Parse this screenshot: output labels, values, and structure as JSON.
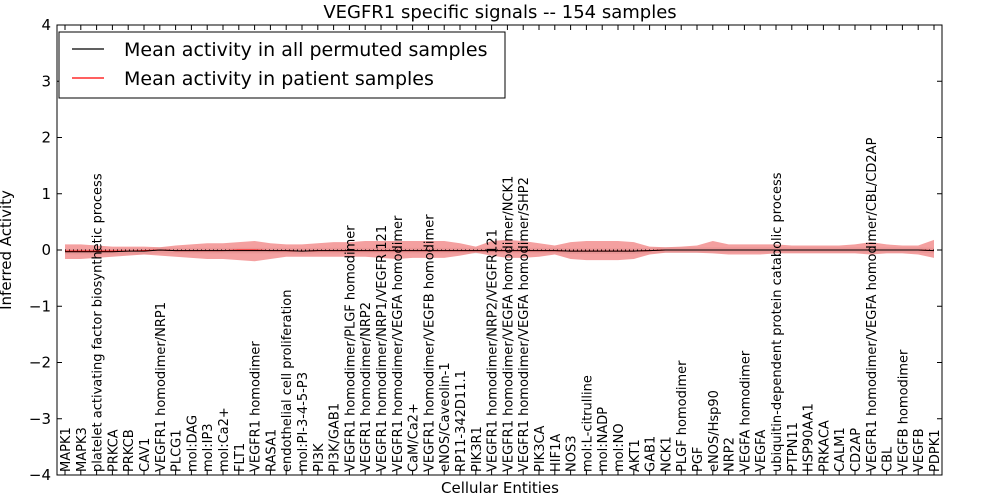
{
  "chart_data": {
    "type": "line",
    "title": "VEGFR1 specific signals -- 154 samples",
    "xlabel": "Cellular Entities",
    "ylabel": "Inferred Activity",
    "ylim": [
      -4,
      4
    ],
    "yticks": [
      "4",
      "3",
      "2",
      "1",
      "0",
      "−1",
      "−2",
      "−3",
      "−4"
    ],
    "grid": false,
    "legend_position": "top-left",
    "categories": [
      "MAPK1",
      "MAPK3",
      "platelet activating factor biosynthetic process",
      "PRKCA",
      "PRKCB",
      "CAV1",
      "VEGFR1 homodimer/NRP1",
      "PLCG1",
      "mol:DAG",
      "mol:IP3",
      "mol:Ca2+",
      "FLT1",
      "VEGFR1 homodimer",
      "RASA1",
      "endothelial cell proliferation",
      "mol:PI-3-4-5-P3",
      "PI3K",
      "PI3K/GAB1",
      "VEGFR1 homodimer/PLGF homodimer",
      "VEGFR1 homodimer/NRP2",
      "VEGFR1 homodimer/NRP1/VEGFR 121",
      "VEGFR1 homodimer/VEGFA homodimer",
      "CaM/Ca2+",
      "VEGFR1 homodimer/VEGFB homodimer",
      "eNOS/Caveolin-1",
      "RP11-342D11.1",
      "PIK3R1",
      "VEGFR1 homodimer/NRP2/VEGFR121",
      "VEGFR1 homodimer/VEGFA homodimer/NCK1",
      "VEGFR1 homodimer/VEGFA homodimer/SHP2",
      "PIK3CA",
      "HIF1A",
      "NOS3",
      "mol:L-citrulline",
      "mol:NADP",
      "mol:NO",
      "AKT1",
      "GAB1",
      "NCK1",
      "PLGF homodimer",
      "PGF",
      "eNOS/Hsp90",
      "NRP2",
      "VEGFA homodimer",
      "VEGFA",
      "ubiquitin-dependent protein catabolic process",
      "PTPN11",
      "HSP90AA1",
      "PRKACA",
      "CALM1",
      "CD2AP",
      "VEGFR1 homodimer/VEGFA homodimer/CBL/CD2AP",
      "CBL",
      "VEGFB homodimer",
      "VEGFB",
      "PDPK1"
    ],
    "series": [
      {
        "name": "Mean activity in all permuted samples",
        "color": "#000000",
        "values": [
          -0.03,
          -0.03,
          -0.03,
          -0.03,
          -0.02,
          -0.02,
          0.0,
          -0.01,
          -0.01,
          -0.01,
          -0.01,
          -0.01,
          -0.01,
          -0.01,
          -0.01,
          -0.02,
          -0.01,
          -0.01,
          -0.01,
          -0.01,
          -0.01,
          -0.01,
          -0.01,
          -0.01,
          -0.01,
          -0.01,
          -0.01,
          -0.01,
          -0.01,
          -0.01,
          -0.01,
          -0.01,
          -0.02,
          -0.02,
          -0.02,
          -0.02,
          -0.02,
          -0.01,
          0.0,
          0.0,
          0.0,
          0.0,
          0.0,
          0.0,
          0.0,
          0.0,
          0.0,
          0.0,
          0.0,
          0.0,
          0.0,
          0.0,
          0.0,
          0.0,
          0.0,
          -0.01
        ],
        "lower": [
          -0.08,
          -0.08,
          -0.08,
          -0.08,
          -0.08,
          -0.08,
          -0.06,
          -0.06,
          -0.06,
          -0.06,
          -0.06,
          -0.06,
          -0.06,
          -0.06,
          -0.06,
          -0.07,
          -0.06,
          -0.06,
          -0.06,
          -0.06,
          -0.06,
          -0.06,
          -0.06,
          -0.06,
          -0.06,
          -0.06,
          -0.06,
          -0.06,
          -0.06,
          -0.06,
          -0.06,
          -0.06,
          -0.07,
          -0.07,
          -0.07,
          -0.07,
          -0.07,
          -0.06,
          -0.05,
          -0.05,
          -0.05,
          -0.05,
          -0.05,
          -0.05,
          -0.05,
          -0.05,
          -0.05,
          -0.05,
          -0.05,
          -0.05,
          -0.05,
          -0.05,
          -0.05,
          -0.05,
          -0.05,
          -0.06
        ],
        "upper": [
          0.02,
          0.02,
          0.02,
          0.02,
          0.03,
          0.03,
          0.05,
          0.04,
          0.04,
          0.04,
          0.04,
          0.04,
          0.04,
          0.04,
          0.04,
          0.03,
          0.04,
          0.04,
          0.04,
          0.04,
          0.04,
          0.04,
          0.04,
          0.04,
          0.04,
          0.04,
          0.04,
          0.04,
          0.04,
          0.04,
          0.04,
          0.04,
          0.03,
          0.03,
          0.03,
          0.03,
          0.03,
          0.04,
          0.05,
          0.05,
          0.05,
          0.05,
          0.05,
          0.05,
          0.05,
          0.05,
          0.05,
          0.05,
          0.05,
          0.05,
          0.05,
          0.05,
          0.05,
          0.05,
          0.05,
          0.04
        ]
      },
      {
        "name": "Mean activity in patient samples",
        "color": "#ff0000",
        "values": [
          -0.02,
          -0.02,
          -0.02,
          -0.02,
          -0.02,
          -0.01,
          0.0,
          -0.01,
          -0.01,
          -0.01,
          -0.01,
          0.0,
          0.0,
          -0.01,
          -0.01,
          -0.02,
          -0.01,
          -0.01,
          -0.01,
          -0.01,
          -0.01,
          -0.01,
          -0.01,
          -0.01,
          -0.01,
          -0.01,
          -0.01,
          -0.01,
          -0.01,
          -0.01,
          -0.01,
          -0.01,
          -0.02,
          -0.02,
          -0.02,
          -0.02,
          -0.02,
          -0.01,
          0.0,
          0.0,
          0.0,
          0.0,
          0.0,
          0.0,
          0.0,
          0.0,
          0.0,
          0.0,
          0.0,
          0.0,
          0.0,
          0.0,
          0.0,
          0.0,
          0.0,
          -0.01
        ],
        "lower": [
          -0.16,
          -0.16,
          -0.14,
          -0.12,
          -0.1,
          -0.08,
          -0.1,
          -0.12,
          -0.14,
          -0.16,
          -0.16,
          -0.18,
          -0.2,
          -0.16,
          -0.12,
          -0.12,
          -0.12,
          -0.12,
          -0.12,
          -0.12,
          -0.14,
          -0.16,
          -0.14,
          -0.14,
          -0.14,
          -0.1,
          -0.05,
          -0.1,
          -0.14,
          -0.14,
          -0.12,
          -0.08,
          -0.16,
          -0.18,
          -0.18,
          -0.18,
          -0.16,
          -0.08,
          -0.05,
          -0.05,
          -0.05,
          -0.06,
          -0.08,
          -0.08,
          -0.08,
          -0.06,
          -0.06,
          -0.06,
          -0.06,
          -0.06,
          -0.06,
          -0.08,
          -0.06,
          -0.06,
          -0.08,
          -0.14
        ],
        "upper": [
          0.1,
          0.1,
          0.08,
          0.06,
          0.06,
          0.06,
          0.05,
          0.08,
          0.1,
          0.12,
          0.12,
          0.14,
          0.16,
          0.12,
          0.1,
          0.1,
          0.12,
          0.14,
          0.14,
          0.16,
          0.16,
          0.16,
          0.16,
          0.16,
          0.16,
          0.12,
          0.06,
          0.16,
          0.18,
          0.16,
          0.12,
          0.08,
          0.14,
          0.16,
          0.16,
          0.16,
          0.14,
          0.06,
          0.05,
          0.06,
          0.08,
          0.16,
          0.1,
          0.1,
          0.1,
          0.1,
          0.08,
          0.08,
          0.08,
          0.08,
          0.1,
          0.14,
          0.1,
          0.08,
          0.08,
          0.18
        ]
      }
    ],
    "baseline_style": "dotted",
    "permuted_band_color": "#cccccc",
    "patient_band_color": "#f08080"
  }
}
